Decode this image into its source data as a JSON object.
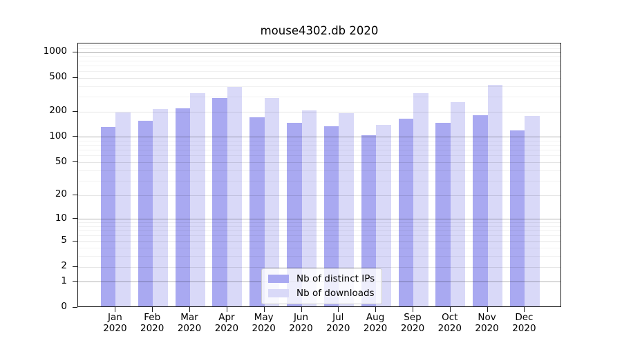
{
  "figure_title": "mouse4302.db 2020",
  "chart_data": {
    "type": "bar",
    "title": "mouse4302.db 2020",
    "categories": [
      "Jan 2020",
      "Feb 2020",
      "Mar 2020",
      "Apr 2020",
      "May 2020",
      "Jun 2020",
      "Jul 2020",
      "Aug 2020",
      "Sep 2020",
      "Oct 2020",
      "Nov 2020",
      "Dec 2020"
    ],
    "series": [
      {
        "name": "Nb of distinct IPs",
        "color": "#a9a9f1",
        "values": [
          128,
          150,
          213,
          280,
          166,
          142,
          131,
          102,
          161,
          144,
          177,
          116
        ]
      },
      {
        "name": "Nb of downloads",
        "color": "#d9d9f8",
        "values": [
          189,
          206,
          322,
          381,
          279,
          201,
          185,
          135,
          320,
          249,
          398,
          173
        ]
      }
    ],
    "xlabel": "",
    "ylabel": "",
    "y_axis": {
      "scale": "log1p",
      "tick_values": [
        0,
        1,
        2,
        5,
        10,
        20,
        50,
        100,
        200,
        500,
        1000
      ],
      "tick_labels": [
        "0",
        "1",
        "2",
        "5",
        "10",
        "20",
        "50",
        "100",
        "200",
        "500",
        "1000"
      ],
      "decade_ticks": [
        1,
        10,
        100,
        1000
      ],
      "minor_ticks": [
        3,
        4,
        6,
        7,
        8,
        9,
        30,
        40,
        60,
        70,
        80,
        90,
        300,
        400,
        600,
        700,
        800,
        900,
        1100,
        1200
      ],
      "ylim": [
        0,
        1250
      ]
    },
    "legend": {
      "position": "lower center",
      "items": [
        "Nb of distinct IPs",
        "Nb of downloads"
      ]
    },
    "grid": true
  }
}
